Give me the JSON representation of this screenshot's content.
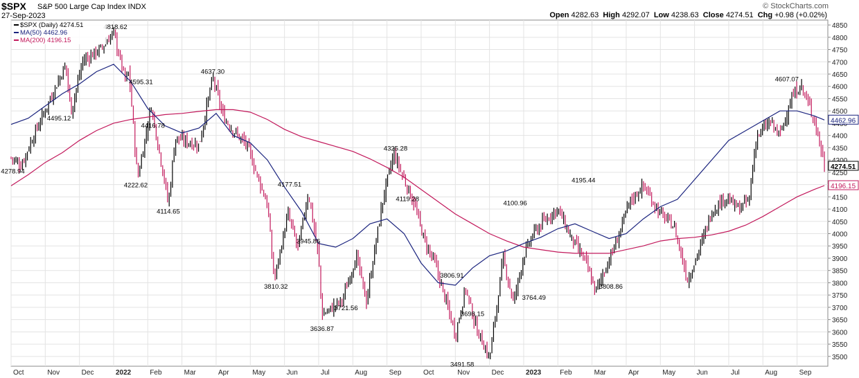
{
  "header": {
    "symbol": "$SPX",
    "full_name": "S&P 500 Large Cap Index  INDX",
    "date": "27-Sep-2023",
    "watermark": "© StockCharts.com",
    "open_label": "Open",
    "open": "4282.63",
    "high_label": "High",
    "high": "4292.07",
    "low_label": "Low",
    "low": "4238.63",
    "close_label": "Close",
    "close": "4274.51",
    "chg_label": "Chg",
    "chg": "+0.98 (+0.02%)"
  },
  "chart_data": {
    "type": "line",
    "legend_position": "top-left",
    "legend": [
      {
        "label": "$SPX (Daily) 4274.51",
        "color": "#000000"
      },
      {
        "label": "MA(50) 4462.96",
        "color": "#1a237e"
      },
      {
        "label": "MA(200) 4196.15",
        "color": "#c2185b"
      }
    ],
    "ylim": [
      3460,
      4870
    ],
    "y_ticks": [
      3500,
      3550,
      3600,
      3650,
      3700,
      3750,
      3800,
      3850,
      3900,
      3950,
      4000,
      4050,
      4100,
      4150,
      4200,
      4250,
      4300,
      4350,
      4400,
      4450,
      4500,
      4550,
      4600,
      4650,
      4700,
      4750,
      4800,
      4850
    ],
    "grid": true,
    "x_ticks": [
      {
        "label": "Oct",
        "t": 0.5
      },
      {
        "label": "Nov",
        "t": 1.5
      },
      {
        "label": "Dec",
        "t": 2.5
      },
      {
        "label": "2022",
        "t": 3.5,
        "bold": true
      },
      {
        "label": "Feb",
        "t": 4.5
      },
      {
        "label": "Mar",
        "t": 5.5
      },
      {
        "label": "Apr",
        "t": 6.5
      },
      {
        "label": "May",
        "t": 7.5
      },
      {
        "label": "Jun",
        "t": 8.5
      },
      {
        "label": "Jul",
        "t": 9.5
      },
      {
        "label": "Aug",
        "t": 10.5
      },
      {
        "label": "Sep",
        "t": 11.5
      },
      {
        "label": "Oct",
        "t": 12.5
      },
      {
        "label": "Nov",
        "t": 13.5
      },
      {
        "label": "Dec",
        "t": 14.5
      },
      {
        "label": "2023",
        "t": 15.5,
        "bold": true
      },
      {
        "label": "Feb",
        "t": 16.5
      },
      {
        "label": "Mar",
        "t": 17.5
      },
      {
        "label": "Apr",
        "t": 18.5
      },
      {
        "label": "May",
        "t": 19.5
      },
      {
        "label": "Jun",
        "t": 20.5
      },
      {
        "label": "Jul",
        "t": 21.5
      },
      {
        "label": "Aug",
        "t": 22.5
      },
      {
        "label": "Sep",
        "t": 23.5
      }
    ],
    "x_range_months": [
      0.5,
      24.4
    ],
    "price_series": {
      "name": "$SPX",
      "t": [
        0.5,
        0.8,
        1.1,
        1.6,
        2.1,
        2.25,
        2.6,
        3.1,
        3.5,
        3.85,
        3.95,
        4.2,
        4.6,
        5.0,
        5.1,
        5.3,
        6.0,
        6.4,
        6.7,
        7.0,
        7.4,
        8.0,
        8.2,
        8.6,
        8.9,
        9.2,
        9.5,
        9.6,
        10.2,
        10.6,
        10.9,
        11.1,
        11.4,
        11.7,
        12.3,
        12.6,
        12.9,
        13.4,
        13.5,
        13.8,
        14.1,
        14.5,
        14.9,
        15.2,
        15.5,
        15.8,
        16.3,
        16.5,
        16.9,
        17.3,
        17.6,
        17.8,
        18.2,
        18.6,
        19.0,
        19.5,
        19.9,
        20.3,
        20.7,
        21.0,
        21.4,
        21.8,
        22.1,
        22.3,
        22.7,
        23.0,
        23.3,
        23.6,
        24.0,
        24.3
      ],
      "values": [
        4310,
        4279,
        4380,
        4535,
        4690,
        4495,
        4705,
        4750,
        4819,
        4620,
        4660,
        4223,
        4520,
        4210,
        4115,
        4390,
        4360,
        4637,
        4480,
        4420,
        4360,
        4120,
        3810,
        4080,
        3940,
        4170,
        3900,
        3667,
        3730,
        3910,
        3722,
        3900,
        4155,
        4325,
        4119,
        3970,
        3880,
        3640,
        3585,
        3780,
        3620,
        3492,
        3900,
        3720,
        3910,
        4005,
        4080,
        4101,
        3980,
        3890,
        3764,
        3830,
        3960,
        4130,
        4195,
        4080,
        4030,
        3809,
        3960,
        4090,
        4150,
        4100,
        4140,
        4390,
        4455,
        4400,
        4540,
        4607,
        4470,
        4280
      ]
    },
    "ma50_series": {
      "name": "MA(50)",
      "t": [
        0.5,
        1.0,
        1.5,
        2.0,
        2.5,
        3.0,
        3.5,
        4.0,
        4.5,
        5.0,
        5.5,
        6.0,
        6.5,
        7.0,
        7.5,
        8.0,
        8.5,
        9.0,
        9.5,
        10.0,
        10.5,
        11.0,
        11.5,
        12.0,
        12.5,
        13.0,
        13.5,
        14.0,
        14.5,
        15.0,
        15.5,
        16.0,
        16.5,
        17.0,
        17.5,
        18.0,
        18.5,
        19.0,
        19.5,
        20.0,
        20.5,
        21.0,
        21.5,
        22.0,
        22.5,
        23.0,
        23.5,
        24.0,
        24.3
      ],
      "values": [
        4445,
        4470,
        4520,
        4570,
        4610,
        4660,
        4690,
        4620,
        4510,
        4440,
        4410,
        4430,
        4490,
        4400,
        4370,
        4300,
        4190,
        4090,
        3960,
        3945,
        3980,
        4040,
        4060,
        4000,
        3880,
        3800,
        3790,
        3860,
        3910,
        3930,
        3960,
        3985,
        4020,
        4040,
        4010,
        3980,
        4000,
        4060,
        4110,
        4140,
        4220,
        4300,
        4380,
        4420,
        4460,
        4500,
        4500,
        4480,
        4463
      ]
    },
    "ma200_series": {
      "name": "MA(200)",
      "t": [
        0.5,
        1.0,
        1.5,
        2.0,
        2.5,
        3.0,
        3.5,
        4.0,
        4.5,
        5.0,
        5.5,
        6.0,
        6.5,
        7.0,
        7.5,
        8.0,
        8.5,
        9.0,
        9.5,
        10.0,
        10.5,
        11.0,
        11.5,
        12.0,
        12.5,
        13.0,
        13.5,
        14.0,
        14.5,
        15.0,
        15.5,
        16.0,
        16.5,
        17.0,
        17.5,
        18.0,
        18.5,
        19.0,
        19.5,
        20.0,
        20.5,
        21.0,
        21.5,
        22.0,
        22.5,
        23.0,
        23.5,
        24.0,
        24.3
      ],
      "values": [
        4195,
        4240,
        4290,
        4330,
        4380,
        4420,
        4450,
        4465,
        4475,
        4485,
        4490,
        4498,
        4505,
        4505,
        4495,
        4465,
        4425,
        4395,
        4375,
        4355,
        4335,
        4305,
        4270,
        4230,
        4180,
        4130,
        4080,
        4040,
        4000,
        3970,
        3945,
        3935,
        3925,
        3920,
        3920,
        3920,
        3935,
        3950,
        3970,
        3980,
        3985,
        3995,
        4010,
        4035,
        4070,
        4110,
        4150,
        4180,
        4196
      ]
    },
    "annotations": [
      {
        "label": "4278.94",
        "t": 0.55,
        "v": 4279,
        "pos": "below"
      },
      {
        "label": "4495.12",
        "t": 1.9,
        "v": 4495,
        "pos": "below"
      },
      {
        "label": "4818.62",
        "t": 3.55,
        "v": 4819,
        "pos": "above"
      },
      {
        "label": "4595.31",
        "t": 4.3,
        "v": 4595,
        "pos": "above"
      },
      {
        "label": "4416.78",
        "t": 4.65,
        "v": 4417,
        "pos": "above"
      },
      {
        "label": "4222.62",
        "t": 4.15,
        "v": 4223,
        "pos": "below"
      },
      {
        "label": "4114.65",
        "t": 5.1,
        "v": 4115,
        "pos": "below"
      },
      {
        "label": "4637.30",
        "t": 6.4,
        "v": 4637,
        "pos": "above"
      },
      {
        "label": "4177.51",
        "t": 8.65,
        "v": 4178,
        "pos": "above"
      },
      {
        "label": "3945.86",
        "t": 9.2,
        "v": 3946,
        "pos": "above"
      },
      {
        "label": "3810.32",
        "t": 8.25,
        "v": 3810,
        "pos": "below"
      },
      {
        "label": "3636.87",
        "t": 9.6,
        "v": 3637,
        "pos": "below"
      },
      {
        "label": "3721.56",
        "t": 10.3,
        "v": 3722,
        "pos": "below"
      },
      {
        "label": "4325.28",
        "t": 11.75,
        "v": 4325,
        "pos": "above"
      },
      {
        "label": "4119.28",
        "t": 12.1,
        "v": 4119,
        "pos": "above"
      },
      {
        "label": "3806.91",
        "t": 13.4,
        "v": 3807,
        "pos": "above"
      },
      {
        "label": "3698.15",
        "t": 14.0,
        "v": 3698,
        "pos": "below"
      },
      {
        "label": "3491.58",
        "t": 13.7,
        "v": 3492,
        "pos": "below"
      },
      {
        "label": "4100.96",
        "t": 15.25,
        "v": 4101,
        "pos": "above"
      },
      {
        "label": "3764.49",
        "t": 15.8,
        "v": 3764,
        "pos": "below"
      },
      {
        "label": "4195.44",
        "t": 17.25,
        "v": 4195,
        "pos": "above"
      },
      {
        "label": "3808.86",
        "t": 18.05,
        "v": 3809,
        "pos": "below"
      },
      {
        "label": "4607.07",
        "t": 23.2,
        "v": 4607,
        "pos": "above"
      }
    ],
    "last_value_labels": [
      {
        "label": "4462.96",
        "v": 4463,
        "color": "#1a237e"
      },
      {
        "label": "4274.51",
        "v": 4275,
        "color": "#000000",
        "bold": true
      },
      {
        "label": "4196.15",
        "v": 4196,
        "color": "#c2185b"
      }
    ]
  }
}
